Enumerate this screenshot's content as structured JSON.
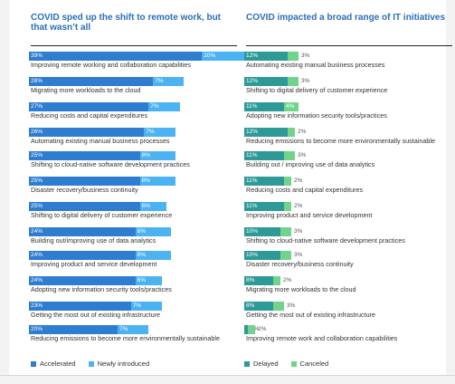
{
  "chart_data": [
    {
      "type": "bar",
      "title": "COVID sped up the shift to remote work, but that wasn’t all",
      "categories": [
        "Improving remote working and collaboration capabilities",
        "Migrating more workloads to the cloud",
        "Reducing costs and capital expenditures",
        "Automating existing manual business processes",
        "Shifting to cloud-native software development practices",
        "Disaster recovery/business continuity",
        "Shifting to digital delivery of customer experience",
        "Building out/improving use of data analytics",
        "Improving product and service development",
        "Adopting new information security tools/practices",
        "Getting the most out of existing infrastructure",
        "Reducing emissions to become more environmentally sustainable"
      ],
      "series": [
        {
          "name": "Accelerated",
          "color": "#2f7dd1",
          "values": [
            39,
            28,
            27,
            26,
            25,
            25,
            25,
            24,
            24,
            24,
            23,
            20
          ]
        },
        {
          "name": "Newly introduced",
          "color": "#4cb3f2",
          "values": [
            20,
            7,
            7,
            7,
            8,
            8,
            6,
            8,
            8,
            6,
            7,
            7
          ]
        }
      ],
      "value_suffix": "%",
      "stacked": true
    },
    {
      "type": "bar",
      "title": "COVID impacted a broad range of IT initiatives",
      "categories": [
        "Automating existing manual business processes",
        "Shifting to digital delivery of customer experience",
        "Adopting new information security tools/practices",
        "Reducing emissions to become more environmentally sustainable",
        "Building out / improving use of data analytics",
        "Reducing costs and capital expenditures",
        "Improving product and service development",
        "Shifting to cloud-native software development practices",
        "Disaster recovery/business continuity",
        "Migrating more workloads to the cloud",
        "Getting the most out of existing infrastructure",
        "Improving remote work and collaboration capabilities"
      ],
      "series": [
        {
          "name": "Delayed",
          "color": "#2e9a98",
          "values": [
            12,
            12,
            11,
            12,
            11,
            11,
            11,
            10,
            10,
            8,
            8,
            1
          ]
        },
        {
          "name": "Canceled",
          "color": "#72d48b",
          "values": [
            3,
            3,
            4,
            2,
            3,
            2,
            2,
            3,
            3,
            2,
            3,
            2
          ]
        }
      ],
      "value_suffix": "%",
      "stacked": true
    }
  ]
}
